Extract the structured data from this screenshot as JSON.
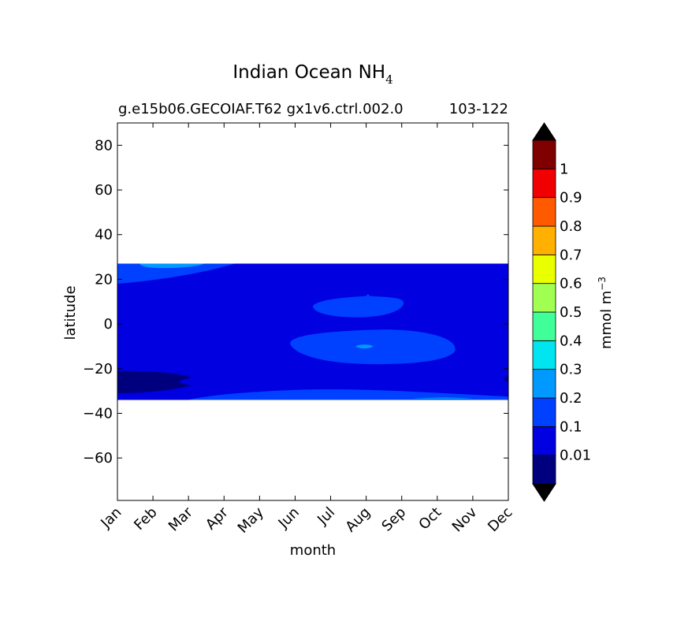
{
  "chart_data": {
    "type": "contour",
    "title": "Indian Ocean NH",
    "title_subscript": "4",
    "subtitle_left": "g.e15b06.GECOIAF.T62 gx1v6.ctrl.002.0",
    "subtitle_right": "103-122",
    "xlabel": "month",
    "ylabel": "latitude",
    "x_ticks": [
      "Jan",
      "Feb",
      "Mar",
      "Apr",
      "May",
      "Jun",
      "Jul",
      "Aug",
      "Sep",
      "Oct",
      "Nov",
      "Dec"
    ],
    "y_ticks": [
      80,
      60,
      40,
      20,
      0,
      -20,
      -40,
      -60
    ],
    "y_tick_labels": [
      "80",
      "60",
      "40",
      "20",
      "0",
      "−20",
      "−40",
      "−60"
    ],
    "xlim": [
      0,
      11
    ],
    "ylim": [
      -79,
      90
    ],
    "data_lat_range": [
      -34,
      27
    ],
    "background_level": "0.1–0.2",
    "regions": [
      {
        "level": "0.2–0.3",
        "months": [
          0.7,
          2.5
        ],
        "lat": [
          25,
          27
        ],
        "note": "northern edge, Jan–Mar"
      },
      {
        "level": "0.1–0.2",
        "months": [
          5.5,
          9.6
        ],
        "lat": [
          -18,
          -3
        ],
        "note": "equatorial patch, Jun–Sep"
      },
      {
        "level": "0.1–0.2",
        "months": [
          5.5,
          8.1
        ],
        "lat": [
          3,
          13
        ],
        "note": "northern patch, Jun–Aug"
      },
      {
        "level": "0.2–0.3",
        "months": [
          6.7,
          7.3
        ],
        "lat": [
          -12,
          -9
        ],
        "note": "small spot, Aug"
      },
      {
        "level": "0.01–0.1",
        "months": [
          0,
          2.1
        ],
        "lat": [
          -31,
          -21
        ],
        "note": "southern edge, Jan–Feb"
      },
      {
        "level": "0.01–0.1",
        "months": [
          10.8,
          11
        ],
        "lat": [
          -26,
          -23
        ],
        "note": "southern edge, Dec"
      },
      {
        "level": "0.1–0.2",
        "months": [
          2,
          11
        ],
        "lat": [
          -34,
          -29
        ],
        "note": "southern band"
      }
    ],
    "colorbar": {
      "label": "mmol m",
      "label_sup": "−3",
      "levels": [
        "0.01",
        "0.1",
        "0.2",
        "0.3",
        "0.4",
        "0.5",
        "0.6",
        "0.7",
        "0.8",
        "0.9",
        "1"
      ],
      "colors": [
        "#00007f",
        "#0000e0",
        "#0040ff",
        "#0099ff",
        "#00e5f0",
        "#40ff99",
        "#a0ff50",
        "#eaff00",
        "#ffb000",
        "#ff5a00",
        "#f00000",
        "#800000"
      ],
      "under_color": "#000000",
      "over_color": "#000000"
    },
    "grid": false
  }
}
